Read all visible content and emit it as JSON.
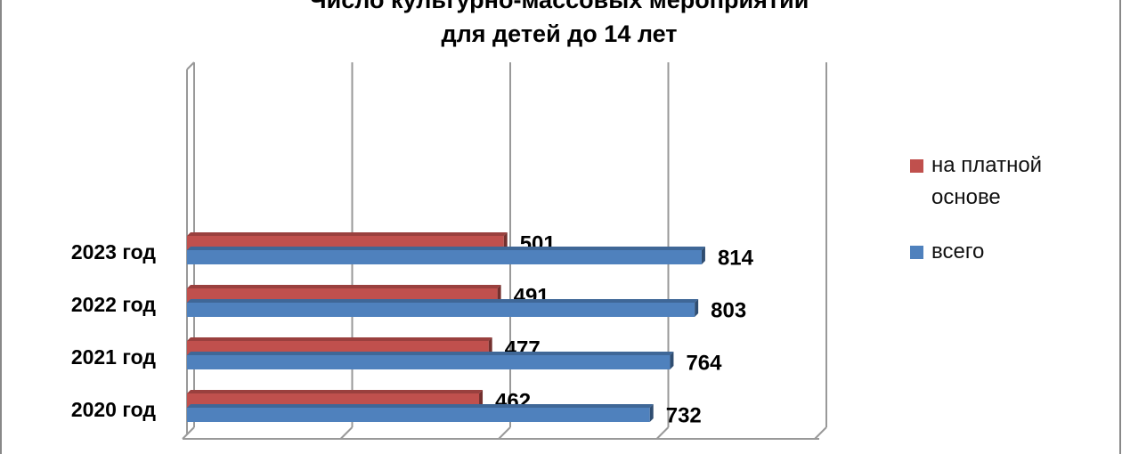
{
  "chart_data": {
    "type": "bar",
    "orientation": "horizontal",
    "title": "Число культурно-массовых мероприятий",
    "subtitle": "для детей до 14 лет",
    "categories": [
      "2020 год",
      "2021 год",
      "2022 год",
      "2023 год"
    ],
    "series": [
      {
        "name": "всего",
        "color": "#4f81bd",
        "values": [
          732,
          764,
          803,
          814
        ]
      },
      {
        "name": "на платной основе",
        "color": "#c0504d",
        "values": [
          462,
          477,
          491,
          501
        ]
      }
    ],
    "xlim": [
      0,
      1000
    ],
    "xticks": [
      0,
      250,
      500,
      750,
      1000
    ],
    "grid": true,
    "legend": "right"
  }
}
